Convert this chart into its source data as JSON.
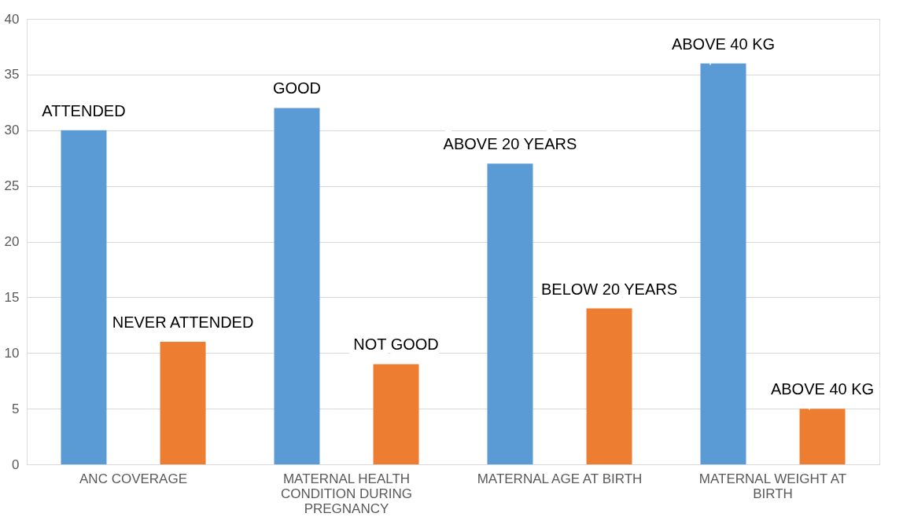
{
  "chart_data": {
    "type": "bar",
    "categories": [
      "ANC COVERAGE",
      "MATERNAL HEALTH CONDITION DURING PREGNANCY",
      "MATERNAL AGE AT BIRTH",
      "MATERNAL WEIGHT AT BIRTH"
    ],
    "series": [
      {
        "color": "#5b9bd5",
        "values": [
          30,
          32,
          27,
          36
        ]
      },
      {
        "color": "#ed7d31",
        "values": [
          11,
          9,
          14,
          5
        ]
      }
    ],
    "ylim": [
      0,
      40
    ],
    "yticks": [
      0,
      5,
      10,
      15,
      20,
      25,
      30,
      35,
      40
    ],
    "grid": "y",
    "legend": false,
    "annotations": [
      "ATTENDED",
      "NEVER ATTENDED",
      "GOOD",
      "NOT GOOD",
      "ABOVE 20 YEARS",
      "BELOW 20 YEARS",
      "ABOVE 40 KG",
      "ABOVE 40 KG"
    ]
  }
}
